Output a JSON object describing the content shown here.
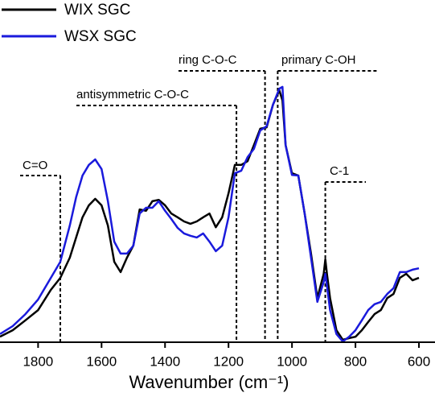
{
  "chart_data": {
    "type": "line",
    "xlabel": "Wavenumber (cm⁻¹)",
    "x": [
      1920,
      1880,
      1840,
      1800,
      1760,
      1730,
      1700,
      1680,
      1660,
      1640,
      1620,
      1600,
      1580,
      1560,
      1540,
      1520,
      1500,
      1480,
      1460,
      1440,
      1420,
      1400,
      1380,
      1360,
      1340,
      1320,
      1300,
      1280,
      1260,
      1240,
      1220,
      1200,
      1180,
      1160,
      1140,
      1120,
      1100,
      1080,
      1060,
      1040,
      1030,
      1020,
      1000,
      980,
      960,
      940,
      920,
      900,
      895,
      890,
      880,
      860,
      840,
      820,
      800,
      780,
      760,
      740,
      720,
      700,
      680,
      660,
      640,
      620,
      600
    ],
    "series": [
      {
        "name": "WIX SGC",
        "color": "#000000",
        "values": [
          1.6,
          3.5,
          6.4,
          9.4,
          15.3,
          18.8,
          24.7,
          30.6,
          36.5,
          40,
          41.9,
          40,
          34.1,
          23.5,
          20.5,
          24.7,
          28.2,
          38.8,
          38.4,
          41.2,
          41.6,
          40,
          37.6,
          36.5,
          35.3,
          34.6,
          35.3,
          36.5,
          37.6,
          33.6,
          36.5,
          43.5,
          51.8,
          51.8,
          52.9,
          57.6,
          62.4,
          62.8,
          69.4,
          73.6,
          70.6,
          57.6,
          49.4,
          48.7,
          37.6,
          25.9,
          12.9,
          20,
          24.2,
          20,
          12.9,
          3.5,
          0.7,
          1.2,
          1.6,
          3.5,
          5.9,
          8.2,
          9.4,
          12.9,
          14.1,
          18.8,
          20,
          18.1,
          18.8
        ]
      },
      {
        "name": "WSX SGC",
        "color": "#1a1adc",
        "values": [
          2.4,
          4.7,
          8.2,
          12.5,
          18.8,
          23.5,
          34.1,
          42.4,
          48.7,
          51.8,
          53.4,
          50.6,
          41.2,
          29.4,
          25.9,
          25.9,
          28.2,
          37.6,
          39.3,
          39.3,
          41.2,
          38.4,
          36,
          33.4,
          31.8,
          31.1,
          30.6,
          31.8,
          29.4,
          26.6,
          28.2,
          36.5,
          49.4,
          50.1,
          54.1,
          56.5,
          61.9,
          63.1,
          69.4,
          74.1,
          74.6,
          57.6,
          48.9,
          48.7,
          37.6,
          24.7,
          11.8,
          17.6,
          20,
          16.5,
          9.4,
          2.4,
          0.2,
          1.6,
          3.5,
          6.4,
          9.4,
          11.1,
          11.8,
          14.1,
          15.8,
          20.5,
          20.5,
          21.2,
          21.6
        ]
      }
    ],
    "xlim": [
      1920,
      595
    ],
    "ylim": [
      0,
      100
    ],
    "xticks": [
      1800,
      1600,
      1400,
      1200,
      1000,
      800,
      600
    ],
    "legend": "upper left",
    "annotations": [
      {
        "text": "C=O",
        "x": 1730
      },
      {
        "text": "antisymmetric C-O-C",
        "x": 1175
      },
      {
        "text": "ring C-O-C",
        "x": 1085
      },
      {
        "text": "primary C-OH",
        "x": 1045
      },
      {
        "text": "C-1",
        "x": 895
      }
    ]
  }
}
